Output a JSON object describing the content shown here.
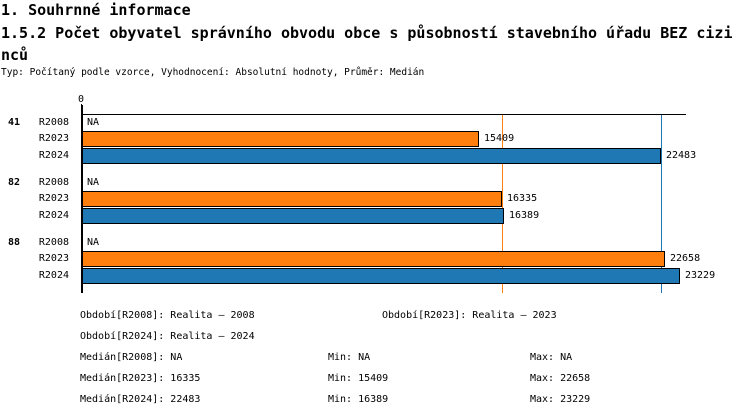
{
  "header": {
    "title1": "1. Souhrnné informace",
    "title2": "1.5.2 Počet obyvatel správního obvodu obce s působností stavebního úřadu BEZ cizinců",
    "meta": "Typ: Počítaný podle vzorce, Vyhodnocení: Absolutní hodnoty, Průměr: Medián"
  },
  "chart_data": {
    "type": "bar",
    "orientation": "horizontal",
    "title": "1.5.2 Počet obyvatel správního obvodu obce s působností stavebního úřadu BEZ cizinců",
    "xlabel": "",
    "ylabel": "",
    "axis": {
      "zero_label": "0",
      "xlim": [
        0,
        23464
      ],
      "grid": false
    },
    "na_label": "NA",
    "categories": [
      "41",
      "82",
      "88"
    ],
    "series": [
      {
        "name": "R2008",
        "color": null,
        "values": [
          null,
          null,
          null
        ]
      },
      {
        "name": "R2023",
        "color": "#ff7f0e",
        "values": [
          15409,
          16335,
          22658
        ]
      },
      {
        "name": "R2024",
        "color": "#1f77b4",
        "values": [
          22483,
          16389,
          23229
        ]
      }
    ],
    "data_labels": {
      "41": {
        "R2008": "NA",
        "R2023": "15409",
        "R2024": "22483"
      },
      "82": {
        "R2008": "NA",
        "R2023": "16335",
        "R2024": "16389"
      },
      "88": {
        "R2008": "NA",
        "R2023": "22658",
        "R2024": "23229"
      }
    },
    "median_lines": [
      {
        "series": "R2023",
        "value": 16335,
        "color": "#ff7f0e"
      },
      {
        "series": "R2024",
        "value": 22483,
        "color": "#1f77b4"
      }
    ],
    "colors": {
      "axis": "#000000",
      "background": "#ffffff"
    }
  },
  "legend": {
    "obdobi_r2008": "Období[R2008]: Realita – 2008",
    "obdobi_r2023": "Období[R2023]: Realita – 2023",
    "obdobi_r2024": "Období[R2024]: Realita – 2024",
    "median_r2008": "Medián[R2008]: NA",
    "median_r2023": "Medián[R2023]: 16335",
    "median_r2024": "Medián[R2024]: 22483",
    "min_r2008": "Min: NA",
    "min_r2023": "Min: 15409",
    "min_r2024": "Min: 16389",
    "max_r2008": "Max: NA",
    "max_r2023": "Max: 22658",
    "max_r2024": "Max: 23229"
  }
}
